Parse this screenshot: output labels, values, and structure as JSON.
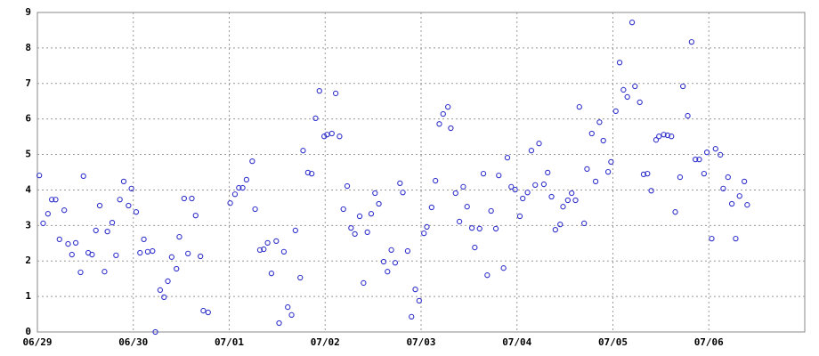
{
  "chart_data": {
    "type": "scatter",
    "color": "#3333cc",
    "grid": true,
    "xlim": [
      0,
      8
    ],
    "xticks": [
      {
        "value": 0,
        "label": "06/29"
      },
      {
        "value": 1,
        "label": "06/30"
      },
      {
        "value": 2,
        "label": "07/01"
      },
      {
        "value": 3,
        "label": "07/02"
      },
      {
        "value": 4,
        "label": "07/03"
      },
      {
        "value": 5,
        "label": "07/04"
      },
      {
        "value": 6,
        "label": "07/05"
      },
      {
        "value": 7,
        "label": "07/06"
      }
    ],
    "ylim": [
      0,
      9
    ],
    "yticks": [
      0,
      1,
      2,
      3,
      4,
      5,
      6,
      7,
      8,
      9
    ],
    "x": [
      0.02,
      0.06,
      0.11,
      0.15,
      0.19,
      0.23,
      0.28,
      0.32,
      0.36,
      0.4,
      0.45,
      0.48,
      0.53,
      0.57,
      0.61,
      0.65,
      0.7,
      0.73,
      0.78,
      0.82,
      0.86,
      0.9,
      0.95,
      0.98,
      1.03,
      1.07,
      1.11,
      1.15,
      1.2,
      1.23,
      1.28,
      1.32,
      1.36,
      1.4,
      1.45,
      1.48,
      1.53,
      1.57,
      1.61,
      1.65,
      1.7,
      1.73,
      1.78,
      2.01,
      2.06,
      2.1,
      2.14,
      2.18,
      2.24,
      2.27,
      2.32,
      2.36,
      2.4,
      2.44,
      2.49,
      2.52,
      2.57,
      2.61,
      2.65,
      2.69,
      2.74,
      2.77,
      2.82,
      2.86,
      2.9,
      2.94,
      2.99,
      3.02,
      3.07,
      3.11,
      3.15,
      3.19,
      3.23,
      3.27,
      3.31,
      3.36,
      3.4,
      3.44,
      3.48,
      3.52,
      3.56,
      3.61,
      3.65,
      3.69,
      3.73,
      3.78,
      3.81,
      3.86,
      3.9,
      3.94,
      3.98,
      4.03,
      4.06,
      4.11,
      4.15,
      4.19,
      4.23,
      4.28,
      4.31,
      4.36,
      4.4,
      4.44,
      4.48,
      4.53,
      4.56,
      4.61,
      4.65,
      4.69,
      4.73,
      4.78,
      4.81,
      4.86,
      4.9,
      4.94,
      4.98,
      5.03,
      5.06,
      5.11,
      5.15,
      5.19,
      5.23,
      5.28,
      5.32,
      5.36,
      5.4,
      5.45,
      5.48,
      5.53,
      5.57,
      5.61,
      5.65,
      5.7,
      5.73,
      5.78,
      5.82,
      5.86,
      5.9,
      5.95,
      5.98,
      6.03,
      6.07,
      6.11,
      6.15,
      6.2,
      6.23,
      6.28,
      6.32,
      6.36,
      6.4,
      6.45,
      6.48,
      6.53,
      6.57,
      6.61,
      6.65,
      6.7,
      6.73,
      6.78,
      6.82,
      6.86,
      6.9,
      6.95,
      6.98,
      7.03,
      7.07,
      7.12,
      7.15,
      7.2,
      7.24,
      7.28,
      7.32,
      7.37,
      7.4
    ],
    "values": [
      4.41,
      3.06,
      3.33,
      3.73,
      3.73,
      2.61,
      3.43,
      2.48,
      2.18,
      2.51,
      1.68,
      4.39,
      2.23,
      2.18,
      2.86,
      3.56,
      1.7,
      2.83,
      3.08,
      2.16,
      3.73,
      4.24,
      3.56,
      4.04,
      3.38,
      2.23,
      2.61,
      2.26,
      2.28,
      0.0,
      1.18,
      0.98,
      1.43,
      2.11,
      1.78,
      2.68,
      3.76,
      2.21,
      3.76,
      3.28,
      2.13,
      0.6,
      0.55,
      3.63,
      3.88,
      4.06,
      4.06,
      4.29,
      4.81,
      3.46,
      2.31,
      2.33,
      2.51,
      1.65,
      2.56,
      0.25,
      2.26,
      0.7,
      0.48,
      2.86,
      1.53,
      5.11,
      4.49,
      4.46,
      6.02,
      6.79,
      5.51,
      5.56,
      5.59,
      6.72,
      5.51,
      3.46,
      4.11,
      2.93,
      2.76,
      3.26,
      1.38,
      2.81,
      3.33,
      3.91,
      3.61,
      1.98,
      1.7,
      2.31,
      1.95,
      4.19,
      3.93,
      2.28,
      0.43,
      1.2,
      0.88,
      2.78,
      2.96,
      3.51,
      4.26,
      5.86,
      6.14,
      6.34,
      5.74,
      3.91,
      3.11,
      4.09,
      3.53,
      2.93,
      2.38,
      2.91,
      4.46,
      1.6,
      3.41,
      2.91,
      4.41,
      1.8,
      4.91,
      4.09,
      4.01,
      3.26,
      3.76,
      3.93,
      5.11,
      4.14,
      5.31,
      4.16,
      4.49,
      3.81,
      2.88,
      3.03,
      3.53,
      3.71,
      3.91,
      3.71,
      6.34,
      3.06,
      4.59,
      5.59,
      4.24,
      5.91,
      5.39,
      4.51,
      4.79,
      6.22,
      7.59,
      6.82,
      6.62,
      8.72,
      6.92,
      6.47,
      4.44,
      4.46,
      3.98,
      5.41,
      5.51,
      5.56,
      5.54,
      5.51,
      3.38,
      4.36,
      6.92,
      6.09,
      8.17,
      4.86,
      4.86,
      4.46,
      5.06,
      2.63,
      5.16,
      4.99,
      4.04,
      4.36,
      3.61,
      2.63,
      3.83,
      4.24,
      3.58
    ]
  }
}
